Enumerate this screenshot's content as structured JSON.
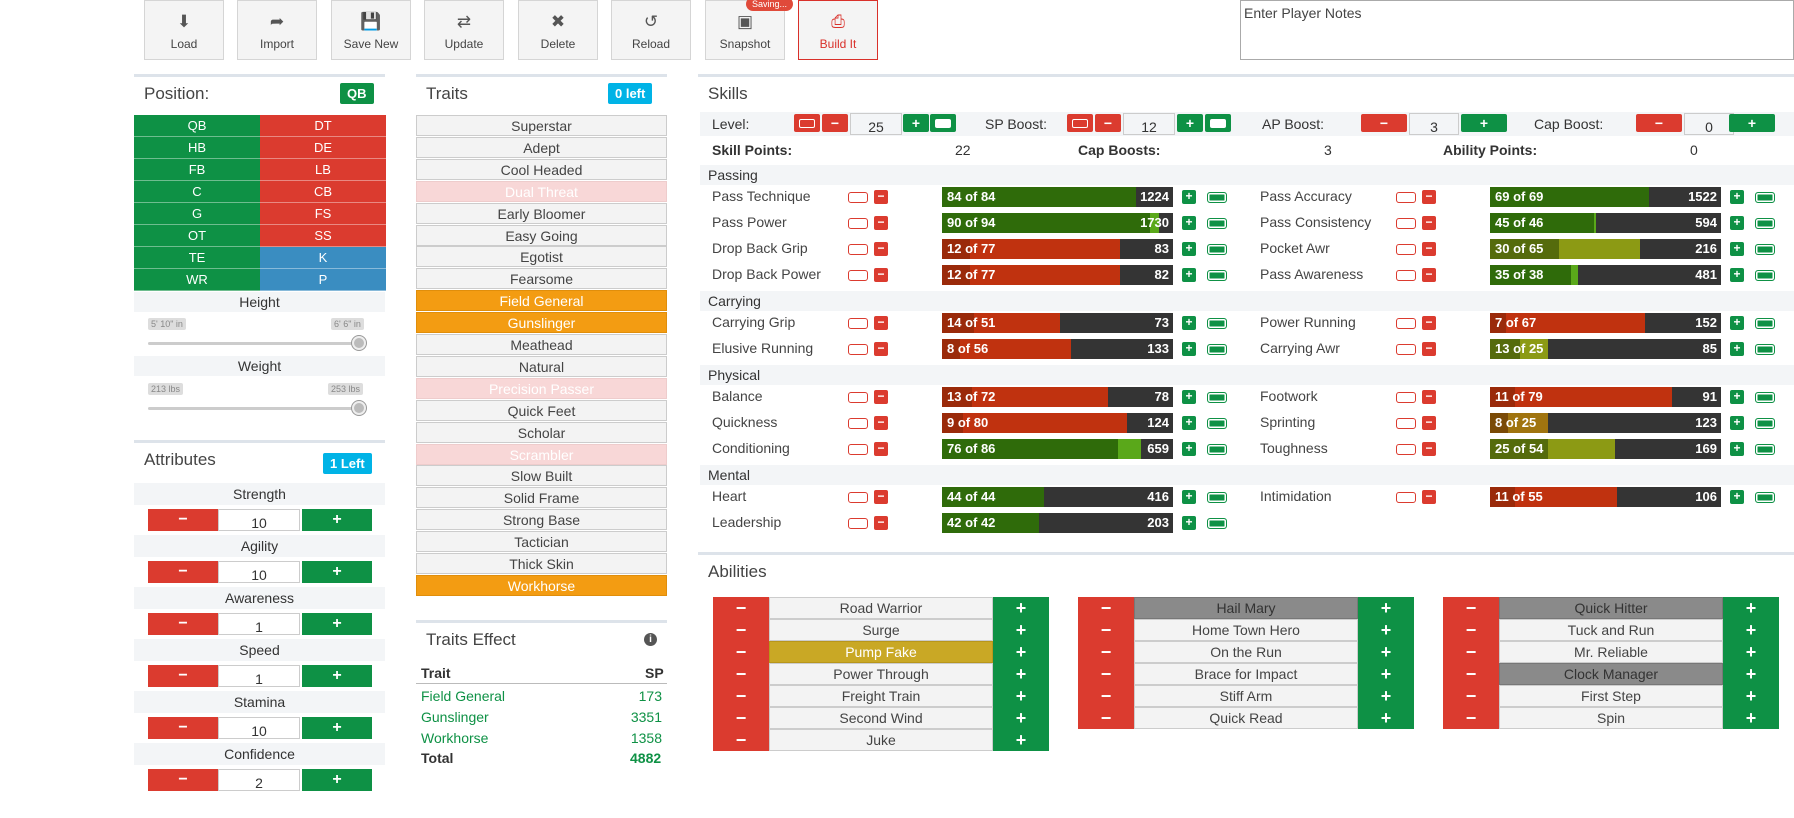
{
  "toolbar": {
    "load": "Load",
    "import": "Import",
    "save_new": "Save New",
    "update": "Update",
    "delete": "Delete",
    "reload": "Reload",
    "snapshot": "Snapshot",
    "saving": "Saving...",
    "build": "Build It"
  },
  "notes_placeholder": "Enter Player Notes",
  "position": {
    "title": "Position:",
    "current": "QB",
    "left": [
      "QB",
      "HB",
      "FB",
      "C",
      "G",
      "OT",
      "TE",
      "WR"
    ],
    "right": [
      "DT",
      "DE",
      "LB",
      "CB",
      "FS",
      "SS",
      "K",
      "P"
    ],
    "height_label": "Height",
    "height_min": "5' 10\" in",
    "height_max": "6' 6\" in",
    "weight_label": "Weight",
    "weight_min": "213 lbs",
    "weight_max": "253 lbs"
  },
  "attributes": {
    "title": "Attributes",
    "left": "1 Left",
    "items": [
      {
        "label": "Strength",
        "value": "10"
      },
      {
        "label": "Agility",
        "value": "10"
      },
      {
        "label": "Awareness",
        "value": "1"
      },
      {
        "label": "Speed",
        "value": "1"
      },
      {
        "label": "Stamina",
        "value": "10"
      },
      {
        "label": "Confidence",
        "value": "2"
      }
    ]
  },
  "traits": {
    "title": "Traits",
    "left": "0 left",
    "items": [
      "Superstar",
      "Adept",
      "Cool Headed",
      "Dual Threat",
      "Early Bloomer",
      "Easy Going",
      "Egotist",
      "Fearsome",
      "Field General",
      "Gunslinger",
      "Meathead",
      "Natural",
      "Precision Passer",
      "Quick Feet",
      "Scholar",
      "Scrambler",
      "Slow Built",
      "Solid Frame",
      "Strong Base",
      "Tactician",
      "Thick Skin",
      "Workhorse"
    ]
  },
  "traits_effect": {
    "title": "Traits Effect",
    "col_trait": "Trait",
    "col_sp": "SP",
    "rows": [
      {
        "name": "Field General",
        "sp": "173"
      },
      {
        "name": "Gunslinger",
        "sp": "3351"
      },
      {
        "name": "Workhorse",
        "sp": "1358"
      }
    ],
    "total_label": "Total",
    "total": "4882"
  },
  "skills": {
    "title": "Skills",
    "level_label": "Level:",
    "level": "25",
    "sp_boost_label": "SP Boost:",
    "sp_boost": "12",
    "ap_boost_label": "AP Boost:",
    "ap_boost": "3",
    "cap_boost_label": "Cap Boost:",
    "cap_boost": "0",
    "skill_points_label": "Skill Points:",
    "skill_points": "22",
    "cap_boosts_label": "Cap Boosts:",
    "cap_boosts": "3",
    "ability_points_label": "Ability Points:",
    "ability_points": "0",
    "sections": [
      {
        "name": "Passing",
        "left": [
          {
            "n": "Pass Technique",
            "cur": 84,
            "cap": 84,
            "sp": "1224"
          },
          {
            "n": "Pass Power",
            "cur": 90,
            "cap": 94,
            "sp": "1730"
          },
          {
            "n": "Drop Back Grip",
            "cur": 12,
            "cap": 77,
            "sp": "83"
          },
          {
            "n": "Drop Back Power",
            "cur": 12,
            "cap": 77,
            "sp": "82"
          }
        ],
        "right": [
          {
            "n": "Pass Accuracy",
            "cur": 69,
            "cap": 69,
            "sp": "1522"
          },
          {
            "n": "Pass Consistency",
            "cur": 45,
            "cap": 46,
            "sp": "594"
          },
          {
            "n": "Pocket Awr",
            "cur": 30,
            "cap": 65,
            "sp": "216"
          },
          {
            "n": "Pass Awareness",
            "cur": 35,
            "cap": 38,
            "sp": "481"
          }
        ]
      },
      {
        "name": "Carrying",
        "left": [
          {
            "n": "Carrying Grip",
            "cur": 14,
            "cap": 51,
            "sp": "73"
          },
          {
            "n": "Elusive Running",
            "cur": 8,
            "cap": 56,
            "sp": "133"
          }
        ],
        "right": [
          {
            "n": "Power Running",
            "cur": 7,
            "cap": 67,
            "sp": "152"
          },
          {
            "n": "Carrying Awr",
            "cur": 13,
            "cap": 25,
            "sp": "85"
          }
        ]
      },
      {
        "name": "Physical",
        "left": [
          {
            "n": "Balance",
            "cur": 13,
            "cap": 72,
            "sp": "78"
          },
          {
            "n": "Quickness",
            "cur": 9,
            "cap": 80,
            "sp": "124"
          },
          {
            "n": "Conditioning",
            "cur": 76,
            "cap": 86,
            "sp": "659"
          }
        ],
        "right": [
          {
            "n": "Footwork",
            "cur": 11,
            "cap": 79,
            "sp": "91"
          },
          {
            "n": "Sprinting",
            "cur": 8,
            "cap": 25,
            "sp": "123"
          },
          {
            "n": "Toughness",
            "cur": 25,
            "cap": 54,
            "sp": "169"
          }
        ]
      },
      {
        "name": "Mental",
        "left": [
          {
            "n": "Heart",
            "cur": 44,
            "cap": 44,
            "sp": "416"
          },
          {
            "n": "Leadership",
            "cur": 42,
            "cap": 42,
            "sp": "203"
          }
        ],
        "right": [
          {
            "n": "Intimidation",
            "cur": 11,
            "cap": 55,
            "sp": "106"
          }
        ]
      }
    ]
  },
  "abilities": {
    "title": "Abilities",
    "col1": [
      "Road Warrior",
      "Surge",
      "Pump Fake",
      "Power Through",
      "Freight Train",
      "Second Wind",
      "Juke"
    ],
    "col2": [
      "Hail Mary",
      "Home Town Hero",
      "On the Run",
      "Brace for Impact",
      "Stiff Arm",
      "Quick Read"
    ],
    "col3": [
      "Quick Hitter",
      "Tuck and Run",
      "Mr. Reliable",
      "Clock Manager",
      "First Step",
      "Spin"
    ]
  },
  "colors": {
    "red": "#db3b2f",
    "green": "#0e9145",
    "blue": "#3a8dc1",
    "orange": "#f39c12",
    "cyan": "#00b3e6"
  }
}
